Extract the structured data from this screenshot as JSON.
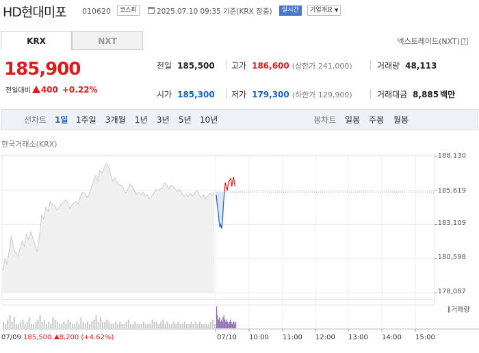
{
  "header": {
    "name": "HD현대미포",
    "code": "010620",
    "market_badge": "코스피",
    "datetime": "2025.07.10 09:35",
    "basis": "기준(KRX 장중)",
    "realtime_badge": "실시간",
    "company_button": "기업개요",
    "company_arrow": "▼"
  },
  "market_tabs": {
    "krx": "KRX",
    "nxt": "NXT"
  },
  "nxt_trade_link": "넥스트레이드(NXT)",
  "help_icon": "?",
  "price": {
    "current": "185,900",
    "change_label": "전일대비",
    "change": "400",
    "change_pct": "+0.22%"
  },
  "stats": {
    "prev_close": {
      "label": "전일",
      "value": "185,500"
    },
    "high": {
      "label": "고가",
      "value": "186,600",
      "sub": "(상한가 241,000)"
    },
    "volume": {
      "label": "거래량",
      "value": "48,113"
    },
    "open": {
      "label": "시가",
      "value": "185,300"
    },
    "low": {
      "label": "저가",
      "value": "179,300",
      "sub": "(하한가 129,900)"
    },
    "amount": {
      "label": "거래대금",
      "value": "8,885",
      "unit": "백만"
    }
  },
  "chart_tabs": {
    "line_label": "선차트",
    "periods": [
      "1일",
      "1주일",
      "3개월",
      "1년",
      "3년",
      "5년",
      "10년"
    ],
    "active_period": "1일",
    "candle_label": "봉차트",
    "candles": [
      "일봉",
      "주봉",
      "월봉"
    ]
  },
  "chart_source_label": "한국거래소(KRX)",
  "volume_legend": "거래량",
  "prev_day": {
    "date": "07/09",
    "close": "185,500",
    "change": "8,200",
    "pct": "(+4.62%)"
  },
  "chart_data": {
    "type": "line",
    "y_ticks": [
      "188,130",
      "185,619",
      "183,109",
      "180,598",
      "178,087"
    ],
    "y_tick_values": [
      188130,
      185619,
      183109,
      180598,
      178087
    ],
    "x_ticks": [
      "07/10",
      "10:00",
      "11:00",
      "12:00",
      "13:00",
      "14:00",
      "15:00"
    ],
    "reference_price": 185500,
    "colors": {
      "prev_day_line": "#cccccc",
      "prev_day_fill": "#f0f0f0",
      "below_line": "#1a5ec0",
      "below_fill": "#dbe6f6",
      "above_line": "#e01a1a",
      "reference": "#999999",
      "volume_prev": "#c8c8c8",
      "volume_today": "#8a6bb0"
    },
    "prev_day_series": [
      179700,
      180600,
      180200,
      181200,
      182300,
      181400,
      181000,
      180800,
      181300,
      181900,
      181500,
      182400,
      182000,
      182600,
      182100,
      181600,
      181100,
      182200,
      183800,
      183500,
      184400,
      184100,
      184800,
      184600,
      184500,
      184200,
      184300,
      184600,
      184700,
      184900,
      184800,
      184300,
      184500,
      184700,
      184800,
      184600,
      185200,
      185500,
      185400,
      185100,
      185300,
      185800,
      186200,
      186700,
      186300,
      187100,
      186900,
      187300,
      187600,
      187400,
      186800,
      186300,
      186500,
      186200,
      186000,
      186000,
      185700,
      185400,
      185700,
      186100,
      185900,
      185600,
      185300,
      185500,
      185300,
      185500,
      185200,
      185300,
      185000,
      185200,
      185400,
      185700,
      185600,
      185700,
      185800,
      186200,
      186000,
      185700,
      186000,
      185900,
      185700,
      185500,
      185700,
      185400,
      185200,
      185300,
      185200,
      185400,
      185200,
      185400,
      185600,
      185300,
      185100,
      185300,
      185000,
      185200,
      185400,
      185300,
      185500
    ],
    "today_series": [
      185300,
      184600,
      184100,
      183400,
      182900,
      183100,
      182800,
      183500,
      184700,
      185500,
      186200,
      185900,
      185600,
      186000,
      186300,
      186400,
      186500,
      185900,
      186300,
      186600,
      186100,
      185900
    ],
    "volume_prev": [
      3,
      2,
      4,
      6,
      3,
      5,
      2,
      2,
      3,
      4,
      2,
      3,
      5,
      2,
      2,
      3,
      4,
      6,
      3,
      4,
      2,
      3,
      2,
      5,
      4,
      3,
      2,
      2,
      3,
      2,
      4,
      3,
      2,
      2,
      3,
      2,
      5,
      3,
      2,
      3,
      2,
      3,
      4,
      6,
      3,
      5,
      3,
      3,
      4,
      3,
      2,
      2,
      3,
      2,
      3,
      2,
      2,
      3,
      4,
      2,
      2,
      3,
      2,
      2,
      2,
      3,
      2,
      2,
      2,
      4,
      3,
      3,
      2,
      3,
      4,
      2,
      3,
      2,
      2,
      3,
      2,
      3,
      2,
      2,
      3,
      2,
      2,
      3,
      2,
      3,
      2,
      3,
      2,
      2,
      2,
      2,
      3,
      4,
      2
    ],
    "volume_today": [
      10,
      6,
      4,
      5,
      3,
      4,
      3,
      5,
      6,
      4,
      3,
      4,
      3,
      2,
      3,
      4,
      3,
      2,
      3,
      3,
      2,
      3
    ]
  }
}
